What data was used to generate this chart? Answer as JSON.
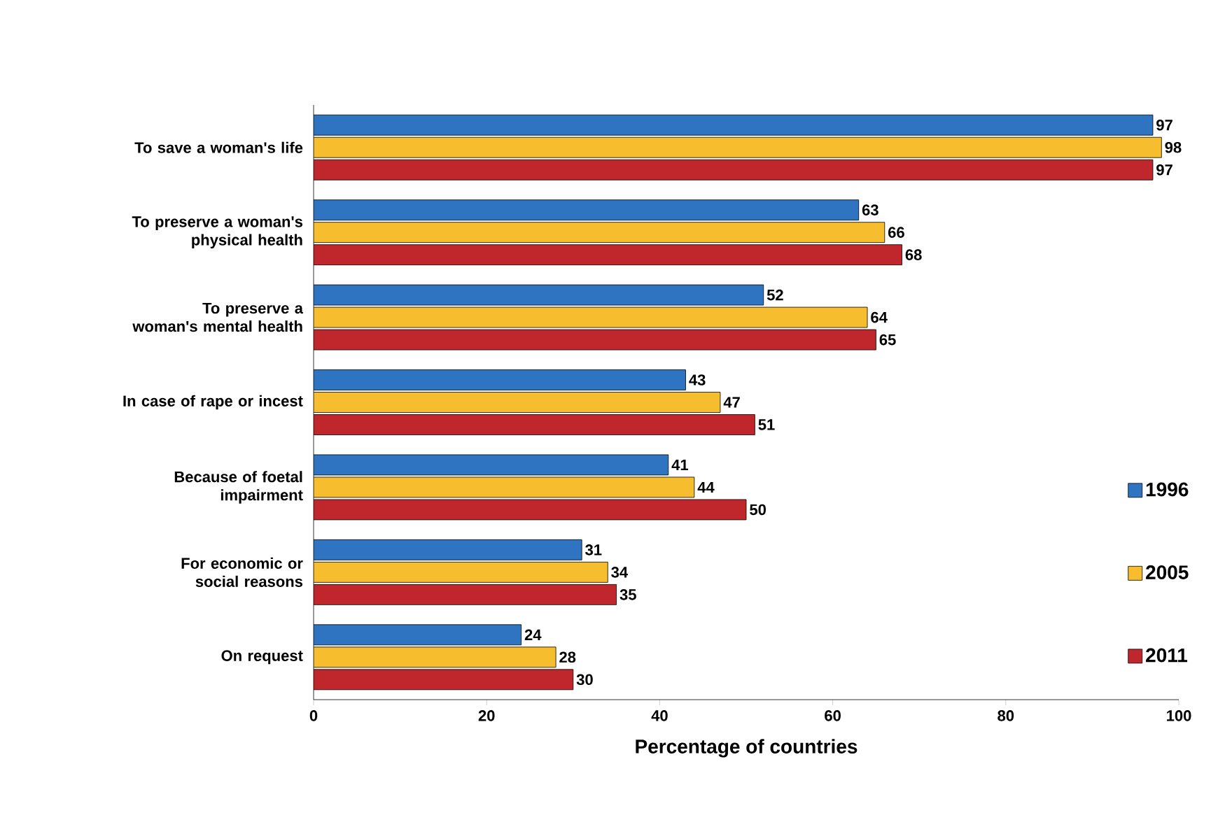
{
  "chart_data": {
    "type": "bar",
    "orientation": "horizontal",
    "xlabel": "Percentage of countries",
    "categories": [
      "To save a woman's life",
      "To preserve a woman's physical health",
      "To preserve a woman's mental health",
      "In case of rape or incest",
      "Because of foetal impairment",
      "For economic or social reasons",
      "On request"
    ],
    "series": [
      {
        "name": "1996",
        "color": "#2e74c0",
        "values": [
          97,
          63,
          52,
          43,
          41,
          31,
          24
        ]
      },
      {
        "name": "2005",
        "color": "#f6bd2f",
        "values": [
          98,
          66,
          64,
          47,
          44,
          34,
          28
        ]
      },
      {
        "name": "2011",
        "color": "#c0272d",
        "values": [
          97,
          68,
          65,
          51,
          50,
          35,
          30
        ]
      }
    ],
    "xlim": [
      0,
      100
    ],
    "xticks": [
      0,
      20,
      40,
      60,
      80,
      100
    ],
    "data_labels": true,
    "legend": "right",
    "grid": false
  }
}
